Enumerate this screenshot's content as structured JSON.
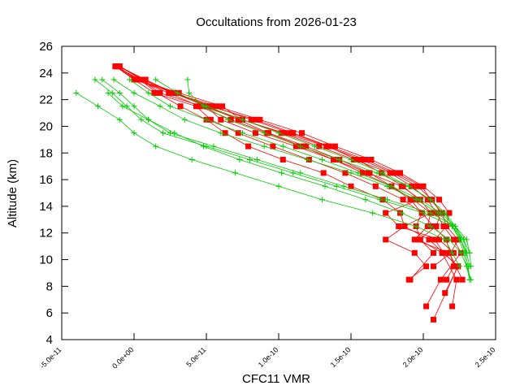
{
  "chart_data": {
    "type": "line",
    "title": "Occultations from 2026-01-23",
    "xlabel": "CFC11 VMR",
    "ylabel": "Altitude (km)",
    "xlim": [
      -5e-11,
      2.5e-10
    ],
    "ylim": [
      4,
      26
    ],
    "x_ticks": [
      "-5.0e-11",
      "0.0e+00",
      "5.0e-11",
      "1.0e-10",
      "1.5e-10",
      "2.0e-10",
      "2.5e-10"
    ],
    "y_ticks": [
      "4",
      "6",
      "8",
      "10",
      "12",
      "14",
      "16",
      "18",
      "20",
      "22",
      "24",
      "26"
    ],
    "colors": {
      "retrieved": "#ff0000",
      "apriori": "#00cc00",
      "axis": "#000000"
    },
    "series": [
      {
        "name": "retrieved",
        "color": "#ff0000",
        "marker": "square",
        "x": [
          -1.2e-11,
          0,
          2.8e-11,
          5.2e-11,
          8.4e-11,
          1.1e-10,
          1.35e-10,
          1.6e-10,
          1.81e-10,
          1.99e-10,
          2.05e-10,
          2.13e-10,
          2.16e-10,
          2.24e-10,
          2.19e-10,
          2.07e-10
        ],
        "y": [
          24.5,
          23.5,
          22.5,
          21.5,
          20.5,
          19.5,
          18.5,
          17.5,
          16.5,
          15.5,
          14.5,
          13.5,
          12.5,
          11.5,
          10.5,
          9.5
        ]
      },
      {
        "name": "retrieved",
        "color": "#ff0000",
        "marker": "square",
        "x": [
          -1e-11,
          5e-12,
          1.8e-11,
          4.7e-11,
          7.5e-11,
          1.02e-10,
          1.28e-10,
          1.52e-10,
          1.77e-10,
          1.92e-10,
          2.03e-10,
          2.09e-10,
          2.14e-10,
          2.21e-10,
          2.26e-10,
          2.12e-10,
          2.02e-10
        ],
        "y": [
          24.5,
          23.5,
          22.5,
          21.5,
          20.5,
          19.5,
          18.5,
          17.5,
          16.5,
          15.5,
          14.5,
          13.5,
          12.5,
          11.5,
          10.5,
          8.5,
          6.5
        ]
      },
      {
        "name": "retrieved",
        "color": "#ff0000",
        "marker": "square",
        "x": [
          -1.3e-11,
          0,
          1.4e-11,
          4.3e-11,
          5.3e-11,
          7.2e-11,
          9.6e-11,
          1.21e-10,
          1.46e-10,
          1.67e-10,
          1.86e-10,
          1.99e-10,
          2.07e-10,
          2.16e-10,
          2.21e-10,
          2.16e-10
        ],
        "y": [
          24.5,
          23.5,
          22.5,
          21.5,
          20.5,
          19.5,
          18.5,
          17.5,
          16.5,
          15.5,
          14.5,
          13.5,
          12.5,
          11.5,
          9.5,
          8.5
        ]
      },
      {
        "name": "retrieved",
        "color": "#ff0000",
        "marker": "square",
        "x": [
          -1.1e-11,
          8e-12,
          2.7e-11,
          5.7e-11,
          8.7e-11,
          1.16e-10,
          1.39e-10,
          1.64e-10,
          1.84e-10,
          2e-10,
          2.11e-10,
          2.18e-10,
          2.16e-10,
          2.08e-10,
          2.14e-10,
          2.24e-10,
          2.07e-10
        ],
        "y": [
          24.5,
          23.5,
          22.5,
          21.5,
          20.5,
          19.5,
          18.5,
          17.5,
          16.5,
          15.5,
          14.5,
          13.5,
          12.5,
          11.5,
          10.5,
          9.5,
          5.5
        ]
      },
      {
        "name": "retrieved",
        "color": "#ff0000",
        "marker": "square",
        "x": [
          -1.2e-11,
          2e-12,
          3.1e-11,
          6.1e-11,
          7.4e-11,
          1.04e-10,
          1.33e-10,
          1.57e-10,
          1.79e-10,
          1.96e-10,
          2.06e-10,
          2.12e-10,
          2.09e-10,
          1.97e-10,
          2.13e-10,
          2.23e-10,
          2.2e-10
        ],
        "y": [
          24.5,
          23.5,
          22.5,
          21.5,
          20.5,
          19.5,
          18.5,
          17.5,
          16.5,
          15.5,
          14.5,
          13.5,
          12.5,
          11.5,
          10.5,
          8.5,
          6.5
        ]
      },
      {
        "name": "retrieved",
        "color": "#ff0000",
        "marker": "square",
        "x": [
          -1e-11,
          6e-12,
          2.9e-11,
          5e-11,
          6e-11,
          8.4e-11,
          1.12e-10,
          1.38e-10,
          1.62e-10,
          1.85e-10,
          1.98e-10,
          2.05e-10,
          1.87e-10,
          1.74e-10,
          1.94e-10,
          2.02e-10,
          1.9e-10
        ],
        "y": [
          24.5,
          23.5,
          22.5,
          21.5,
          20.5,
          19.5,
          18.5,
          17.5,
          16.5,
          15.5,
          14.5,
          13.5,
          12.5,
          11.5,
          10.5,
          9.5,
          8.5
        ]
      },
      {
        "name": "retrieved",
        "color": "#ff0000",
        "marker": "square",
        "x": [
          -1.3e-11,
          4e-12,
          1.6e-11,
          3.2e-11,
          5e-11,
          6.3e-11,
          7.9e-11,
          1.03e-10,
          1.31e-10,
          1.5e-10,
          1.72e-10,
          1.84e-10,
          1.87e-10,
          2.04e-10,
          2.24e-10,
          2.15e-10
        ],
        "y": [
          24.5,
          23.5,
          22.5,
          21.5,
          20.5,
          19.5,
          18.5,
          17.5,
          16.5,
          15.5,
          14.5,
          13.5,
          12.5,
          11.5,
          9.5,
          7.5
        ]
      },
      {
        "name": "retrieved",
        "color": "#ff0000",
        "marker": "square",
        "x": [
          -1.1e-11,
          1e-12,
          2.4e-11,
          4.5e-11,
          6.7e-11,
          9.2e-11,
          1.16e-10,
          1.38e-10,
          1.58e-10,
          1.78e-10,
          1.93e-10,
          2.05e-10,
          2.03e-10,
          1.94e-10,
          2.18e-10,
          2.27e-10
        ],
        "y": [
          24.5,
          23.5,
          22.5,
          21.5,
          20.5,
          19.5,
          18.5,
          17.5,
          16.5,
          15.5,
          14.5,
          13.5,
          12.5,
          11.5,
          10.5,
          8.5
        ]
      },
      {
        "name": "retrieved",
        "color": "#ff0000",
        "marker": "square",
        "x": [
          -1.2e-11,
          3e-12,
          2.7e-11,
          5.4e-11,
          8.1e-11,
          1.08e-10,
          1.34e-10,
          1.54e-10,
          1.71e-10,
          1.86e-10,
          1.97e-10,
          1.74e-10,
          1.83e-10,
          2.11e-10,
          2.21e-10
        ],
        "y": [
          24.5,
          23.5,
          22.5,
          21.5,
          20.5,
          19.5,
          18.5,
          17.5,
          16.5,
          15.5,
          14.5,
          13.5,
          12.5,
          11.5,
          10.5
        ]
      },
      {
        "name": "retrieved",
        "color": "#ff0000",
        "marker": "square",
        "x": [
          -1e-11,
          7e-12,
          2.7e-11,
          5e-11,
          7.2e-11,
          9.3e-11,
          1.19e-10,
          1.42e-10,
          1.63e-10,
          1.78e-10,
          1.91e-10,
          1.99e-10,
          1.95e-10,
          1.98e-10,
          2.07e-10,
          1.91e-10
        ],
        "y": [
          24.5,
          23.5,
          22.5,
          21.5,
          20.5,
          19.5,
          18.5,
          17.5,
          16.5,
          15.5,
          14.5,
          13.5,
          12.5,
          11.5,
          10.5,
          8.5
        ]
      },
      {
        "name": "apriori",
        "color": "#00cc00",
        "marker": "plus",
        "x": [
          -4e-11,
          -2.5e-11,
          -1e-11,
          0,
          1.5e-11,
          4e-11,
          7e-11,
          1e-10,
          1.3e-10,
          1.65e-10,
          1.95e-10,
          2.15e-10,
          2.2e-10,
          2.25e-10
        ],
        "y": [
          22.5,
          21.5,
          20.5,
          19.5,
          18.5,
          17.5,
          16.5,
          15.5,
          14.5,
          13.5,
          12.5,
          11.5,
          10.5,
          9.5
        ]
      },
      {
        "name": "apriori",
        "color": "#00cc00",
        "marker": "plus",
        "x": [
          -2.7e-11,
          -1.5e-11,
          -5e-12,
          5e-12,
          2e-11,
          5e-11,
          8e-11,
          1.1e-10,
          1.4e-10,
          1.7e-10,
          2e-10,
          2.2e-10,
          2.28e-10,
          2.3e-10
        ],
        "y": [
          23.5,
          22.5,
          21.5,
          20.5,
          19.5,
          18.5,
          17.5,
          16.5,
          15.5,
          14.5,
          13.5,
          12.5,
          11.5,
          10.5
        ]
      },
      {
        "name": "apriori",
        "color": "#00cc00",
        "marker": "plus",
        "x": [
          -2.2e-11,
          -1e-11,
          0,
          1e-11,
          2.5e-11,
          5.5e-11,
          8.5e-11,
          1.15e-10,
          1.45e-10,
          1.75e-10,
          2.05e-10,
          2.22e-10,
          2.3e-10,
          2.32e-10
        ],
        "y": [
          23.5,
          22.5,
          21.5,
          20.5,
          19.5,
          18.5,
          17.5,
          16.5,
          15.5,
          14.5,
          13.5,
          12.5,
          11.5,
          10.5
        ]
      },
      {
        "name": "apriori",
        "color": "#00cc00",
        "marker": "plus",
        "x": [
          -1.4e-11,
          0,
          1.8e-11,
          3.5e-11,
          6e-11,
          9e-11,
          1.2e-10,
          1.5e-10,
          1.75e-10,
          1.95e-10,
          2.1e-10,
          2.2e-10,
          2.26e-10,
          2.3e-10,
          2.32e-10
        ],
        "y": [
          23.5,
          22.5,
          21.5,
          20.5,
          19.5,
          18.5,
          17.5,
          16.5,
          15.5,
          14.5,
          13.5,
          12.5,
          11.5,
          10.5,
          9.5
        ]
      },
      {
        "name": "apriori",
        "color": "#00cc00",
        "marker": "plus",
        "x": [
          -3e-12,
          1e-11,
          2.5e-11,
          5e-11,
          7.5e-11,
          1.03e-10,
          1.3e-10,
          1.55e-10,
          1.78e-10,
          1.98e-10,
          2.12e-10,
          2.22e-10,
          2.28e-10,
          2.32e-10,
          2.33e-10
        ],
        "y": [
          23.5,
          22.5,
          21.5,
          20.5,
          19.5,
          18.5,
          17.5,
          16.5,
          15.5,
          14.5,
          13.5,
          12.5,
          11.5,
          10.5,
          9.5
        ]
      },
      {
        "name": "apriori",
        "color": "#00cc00",
        "marker": "plus",
        "x": [
          3.7e-11,
          3.8e-11,
          4.8e-11,
          6.5e-11,
          9e-11,
          1.15e-10,
          1.42e-10,
          1.68e-10,
          1.9e-10,
          2.05e-10,
          2.15e-10,
          2.22e-10,
          2.26e-10,
          2.29e-10,
          2.31e-10,
          2.32e-10
        ],
        "y": [
          23.5,
          22.5,
          21.5,
          20.5,
          19.5,
          18.5,
          17.5,
          16.5,
          15.5,
          14.5,
          13.5,
          12.5,
          11.5,
          10.5,
          9.5,
          8.5
        ]
      },
      {
        "name": "apriori",
        "color": "#00cc00",
        "marker": "plus",
        "x": [
          1.5e-11,
          3e-11,
          5e-11,
          7.5e-11,
          1e-10,
          1.25e-10,
          1.5e-10,
          1.72e-10,
          1.9e-10,
          2.05e-10,
          2.15e-10,
          2.2e-10,
          2.25e-10,
          2.28e-10,
          2.3e-10,
          2.33e-10
        ],
        "y": [
          23.5,
          22.5,
          21.5,
          20.5,
          19.5,
          18.5,
          17.5,
          16.5,
          15.5,
          14.5,
          13.5,
          12.5,
          11.5,
          10.5,
          9.5,
          8.5
        ]
      },
      {
        "name": "apriori",
        "color": "#00cc00",
        "marker": "plus",
        "x": [
          -1.8e-11,
          -8e-12,
          1e-11,
          2.8e-11,
          4.8e-11,
          7.3e-11,
          1.02e-10,
          1.32e-10,
          1.6e-10,
          1.85e-10,
          2.05e-10,
          2.18e-10,
          2.26e-10,
          2.3e-10,
          2.32e-10
        ],
        "y": [
          22.5,
          21.5,
          20.5,
          19.5,
          18.5,
          17.5,
          16.5,
          15.5,
          14.5,
          13.5,
          12.5,
          11.5,
          10.5,
          9.5,
          8.5
        ]
      }
    ]
  }
}
